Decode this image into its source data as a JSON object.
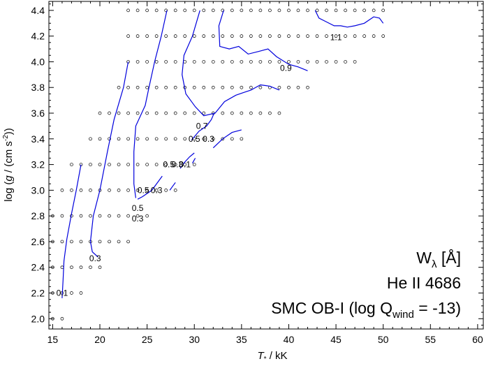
{
  "chart_data": {
    "type": "line",
    "xlabel_italic": "T",
    "xlabel_sub": "*",
    "xlabel_rest": " / kK",
    "ylabel_parts": [
      "log (",
      "g",
      " / (cm s",
      "-2",
      "))"
    ],
    "xlim": [
      14.6,
      60.6
    ],
    "ylim": [
      1.92,
      4.47
    ],
    "x_ticks": [
      15,
      20,
      25,
      30,
      35,
      40,
      45,
      50,
      55,
      60
    ],
    "y_ticks": [
      2.0,
      2.2,
      2.4,
      2.6,
      2.8,
      3.0,
      3.2,
      3.4,
      3.6,
      3.8,
      4.0,
      4.2,
      4.4
    ],
    "x_tick_labels": [
      "15",
      "20",
      "25",
      "30",
      "35",
      "40",
      "45",
      "50",
      "55",
      "60"
    ],
    "y_tick_labels": [
      "2.0",
      "2.2",
      "2.4",
      "2.6",
      "2.8",
      "3.0",
      "3.2",
      "3.4",
      "3.6",
      "3.8",
      "4.0",
      "4.2",
      "4.4"
    ],
    "annotation": {
      "line1_main": "W",
      "line1_sub": "λ",
      "line1_rest": "  [Å]",
      "line2": "He II 4686",
      "line3_pre": "SMC OB-I (log Q",
      "line3_sub": "wind",
      "line3_post": " = -13)"
    },
    "grid_rows": [
      {
        "logg": 4.4,
        "teff": [
          23,
          24,
          25,
          26,
          27,
          28,
          29,
          30,
          31,
          32,
          33,
          34,
          35,
          36,
          37,
          38,
          39,
          40,
          41,
          42,
          43,
          44,
          45,
          46,
          47,
          48,
          49,
          50
        ]
      },
      {
        "logg": 4.2,
        "teff": [
          23,
          24,
          25,
          26,
          27,
          28,
          29,
          30,
          31,
          32,
          33,
          34,
          35,
          36,
          37,
          38,
          39,
          40,
          41,
          42,
          43,
          44,
          45,
          46,
          47,
          48,
          49,
          50
        ]
      },
      {
        "logg": 4.0,
        "teff": [
          23,
          24,
          25,
          26,
          27,
          28,
          29,
          30,
          31,
          32,
          33,
          34,
          35,
          36,
          37,
          38,
          39,
          40,
          41,
          42,
          43,
          44,
          45,
          46,
          47
        ]
      },
      {
        "logg": 3.8,
        "teff": [
          22,
          23,
          24,
          25,
          26,
          27,
          28,
          29,
          30,
          31,
          32,
          33,
          34,
          35,
          36,
          37,
          38,
          39,
          40,
          41,
          42
        ]
      },
      {
        "logg": 3.6,
        "teff": [
          20,
          21,
          22,
          23,
          24,
          25,
          26,
          27,
          28,
          29,
          30,
          31,
          32,
          33,
          34,
          35,
          36,
          37,
          38,
          39
        ]
      },
      {
        "logg": 3.4,
        "teff": [
          19,
          20,
          21,
          22,
          23,
          24,
          25,
          26,
          27,
          28,
          29,
          30,
          31,
          32,
          33,
          34,
          35
        ]
      },
      {
        "logg": 3.2,
        "teff": [
          17,
          18,
          19,
          20,
          21,
          22,
          23,
          24,
          25,
          26,
          27,
          28,
          29,
          30
        ]
      },
      {
        "logg": 3.0,
        "teff": [
          16,
          17,
          18,
          19,
          20,
          21,
          22,
          23,
          24,
          25,
          26,
          27,
          28
        ]
      },
      {
        "logg": 2.8,
        "teff": [
          15,
          16,
          17,
          18,
          19,
          20,
          21,
          22,
          23,
          24,
          25
        ]
      },
      {
        "logg": 2.6,
        "teff": [
          15,
          16,
          17,
          18,
          19,
          20,
          21,
          22,
          23
        ]
      },
      {
        "logg": 2.4,
        "teff": [
          15,
          16,
          17,
          18,
          19,
          20
        ]
      },
      {
        "logg": 2.2,
        "teff": [
          15,
          16,
          17,
          18
        ]
      },
      {
        "logg": 2.0,
        "teff": [
          15,
          16
        ]
      }
    ],
    "series": [
      {
        "values": [
          [
            16.0,
            2.16
          ],
          [
            16.1,
            2.3
          ],
          [
            16.2,
            2.45
          ],
          [
            16.5,
            2.62
          ],
          [
            17.0,
            2.82
          ],
          [
            17.5,
            3.0
          ],
          [
            18.0,
            3.2
          ]
        ]
      },
      {
        "values": [
          [
            19.8,
            2.48
          ],
          [
            19.2,
            2.52
          ],
          [
            19.0,
            2.6
          ],
          [
            19.3,
            2.8
          ],
          [
            20.0,
            3.0
          ],
          [
            20.8,
            3.3
          ],
          [
            21.5,
            3.55
          ],
          [
            22.5,
            3.8
          ],
          [
            23.0,
            4.0
          ]
        ]
      },
      {
        "values": [
          [
            23.8,
            2.94
          ],
          [
            23.6,
            3.05
          ],
          [
            23.6,
            3.3
          ],
          [
            23.8,
            3.5
          ],
          [
            24.8,
            3.66
          ],
          [
            25.2,
            3.8
          ],
          [
            25.8,
            4.0
          ],
          [
            26.5,
            4.2
          ],
          [
            27.1,
            4.4
          ]
        ]
      },
      {
        "values": [
          [
            24.0,
            2.93
          ],
          [
            24.5,
            2.95
          ],
          [
            25.5,
            3.0
          ],
          [
            26.2,
            3.07
          ],
          [
            26.6,
            3.11
          ]
        ]
      },
      {
        "values": [
          [
            27.4,
            3.0
          ],
          [
            27.7,
            3.03
          ],
          [
            28.0,
            3.06
          ]
        ]
      },
      {
        "values": [
          [
            29.7,
            3.39
          ],
          [
            30.5,
            3.46
          ],
          [
            31.3,
            3.5
          ],
          [
            31.8,
            3.55
          ],
          [
            32.1,
            3.6
          ]
        ]
      },
      {
        "values": [
          [
            32.0,
            3.33
          ],
          [
            33.0,
            3.4
          ],
          [
            34.0,
            3.45
          ],
          [
            35.0,
            3.47
          ]
        ]
      },
      {
        "values": [
          [
            28.5,
            3.17
          ],
          [
            29.0,
            3.22
          ],
          [
            29.5,
            3.26
          ],
          [
            30.0,
            3.29
          ]
        ]
      },
      {
        "values": [
          [
            29.8,
            3.21
          ],
          [
            30.1,
            3.25
          ]
        ]
      },
      {
        "values": [
          [
            30.6,
            4.4
          ],
          [
            29.8,
            4.2
          ],
          [
            28.9,
            4.05
          ],
          [
            28.7,
            3.9
          ],
          [
            29.1,
            3.75
          ],
          [
            30.1,
            3.65
          ],
          [
            31.0,
            3.58
          ],
          [
            32.2,
            3.6
          ],
          [
            33.2,
            3.69
          ],
          [
            34.4,
            3.74
          ],
          [
            35.2,
            3.76
          ],
          [
            36.0,
            3.78
          ],
          [
            37.0,
            3.82
          ],
          [
            38.0,
            3.81
          ],
          [
            39.0,
            3.78
          ]
        ]
      },
      {
        "values": [
          [
            33.1,
            4.4
          ],
          [
            32.6,
            4.28
          ],
          [
            32.7,
            4.12
          ],
          [
            33.7,
            4.1
          ],
          [
            34.7,
            4.12
          ],
          [
            35.7,
            4.06
          ],
          [
            36.8,
            4.08
          ],
          [
            37.8,
            4.1
          ],
          [
            38.7,
            4.04
          ],
          [
            40.0,
            3.98
          ],
          [
            41.0,
            3.96
          ],
          [
            42.0,
            3.93
          ]
        ]
      },
      {
        "values": [
          [
            42.8,
            4.4
          ],
          [
            43.2,
            4.34
          ],
          [
            44.0,
            4.31
          ],
          [
            44.8,
            4.28
          ],
          [
            45.5,
            4.28
          ],
          [
            46.2,
            4.27
          ],
          [
            47.0,
            4.28
          ],
          [
            48.0,
            4.3
          ],
          [
            49.0,
            4.35
          ],
          [
            49.6,
            4.34
          ],
          [
            50.0,
            4.3
          ]
        ]
      }
    ],
    "contour_labels": [
      {
        "text": "0.1",
        "x": 16.0,
        "y": 2.2
      },
      {
        "text": "0.3",
        "x": 19.5,
        "y": 2.47
      },
      {
        "text": "0.3",
        "x": 24.0,
        "y": 2.78
      },
      {
        "text": "0.5",
        "x": 24.0,
        "y": 2.86
      },
      {
        "text": "0.5",
        "x": 24.6,
        "y": 3.0
      },
      {
        "text": "0.3",
        "x": 26.0,
        "y": 3.0
      },
      {
        "text": "0.5",
        "x": 27.3,
        "y": 3.2
      },
      {
        "text": "0.1",
        "x": 29.0,
        "y": 3.2
      },
      {
        "text": "0.3",
        "x": 28.2,
        "y": 3.2
      },
      {
        "text": "0.5",
        "x": 30.0,
        "y": 3.4
      },
      {
        "text": "0.3",
        "x": 31.5,
        "y": 3.4
      },
      {
        "text": "0.7",
        "x": 30.8,
        "y": 3.5
      },
      {
        "text": "0.9",
        "x": 39.7,
        "y": 3.95
      },
      {
        "text": "1.1",
        "x": 45.0,
        "y": 4.19
      }
    ]
  }
}
